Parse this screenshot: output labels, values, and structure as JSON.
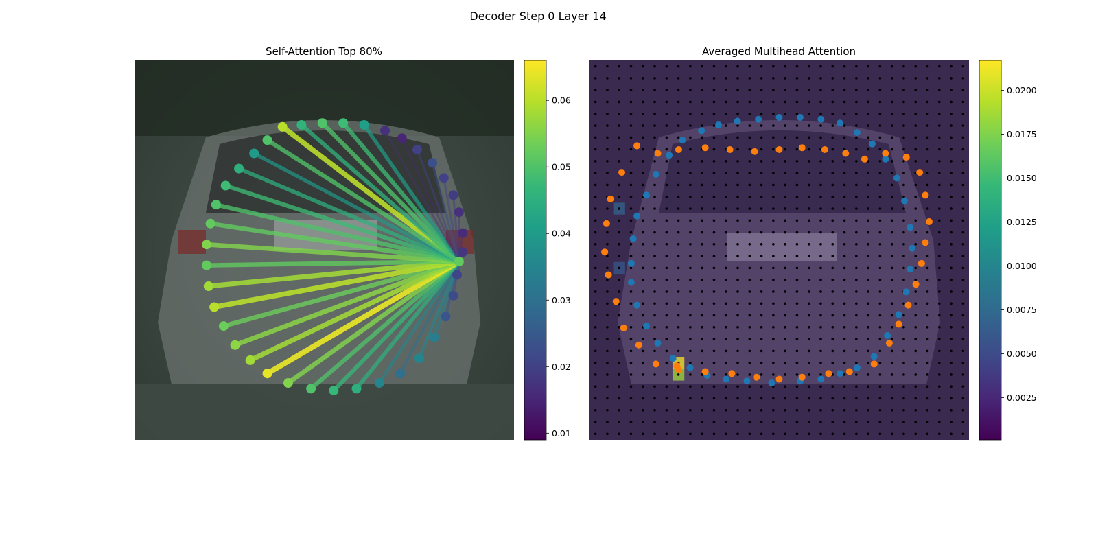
{
  "figure": {
    "suptitle": "Decoder Step 0 Layer 14"
  },
  "colors": {
    "point_blue": "#1f77b4",
    "point_orange": "#ff7f0e",
    "grid_dot": "#000000",
    "viridis": [
      "#440154",
      "#482878",
      "#3e4a89",
      "#31688e",
      "#26828e",
      "#1f9e89",
      "#35b779",
      "#6ece58",
      "#b5de2b",
      "#fde725"
    ]
  },
  "chart_data": [
    {
      "type": "scatter",
      "title": "Self-Attention Top 80%",
      "description_kind": "attention graph over car contour points",
      "query_point_index": 14,
      "points": [
        {
          "x": 0.39,
          "y": 0.825,
          "v": 0.06
        },
        {
          "x": 0.44,
          "y": 0.83,
          "v": 0.046
        },
        {
          "x": 0.495,
          "y": 0.835,
          "v": 0.05
        },
        {
          "x": 0.55,
          "y": 0.835,
          "v": 0.048
        },
        {
          "x": 0.605,
          "y": 0.83,
          "v": 0.041
        },
        {
          "x": 0.66,
          "y": 0.815,
          "v": 0.017
        },
        {
          "x": 0.705,
          "y": 0.795,
          "v": 0.015
        },
        {
          "x": 0.745,
          "y": 0.765,
          "v": 0.02
        },
        {
          "x": 0.785,
          "y": 0.73,
          "v": 0.023
        },
        {
          "x": 0.815,
          "y": 0.69,
          "v": 0.02
        },
        {
          "x": 0.84,
          "y": 0.645,
          "v": 0.019
        },
        {
          "x": 0.855,
          "y": 0.6,
          "v": 0.017
        },
        {
          "x": 0.865,
          "y": 0.545,
          "v": 0.016
        },
        {
          "x": 0.865,
          "y": 0.495,
          "v": 0.018
        },
        {
          "x": 0.855,
          "y": 0.47,
          "v": 0.052
        },
        {
          "x": 0.85,
          "y": 0.435,
          "v": 0.021
        },
        {
          "x": 0.84,
          "y": 0.38,
          "v": 0.022
        },
        {
          "x": 0.82,
          "y": 0.325,
          "v": 0.024
        },
        {
          "x": 0.79,
          "y": 0.27,
          "v": 0.033
        },
        {
          "x": 0.75,
          "y": 0.215,
          "v": 0.035
        },
        {
          "x": 0.7,
          "y": 0.175,
          "v": 0.03
        },
        {
          "x": 0.645,
          "y": 0.15,
          "v": 0.035
        },
        {
          "x": 0.585,
          "y": 0.135,
          "v": 0.045
        },
        {
          "x": 0.525,
          "y": 0.13,
          "v": 0.047
        },
        {
          "x": 0.465,
          "y": 0.135,
          "v": 0.05
        },
        {
          "x": 0.405,
          "y": 0.15,
          "v": 0.055
        },
        {
          "x": 0.35,
          "y": 0.175,
          "v": 0.064
        },
        {
          "x": 0.305,
          "y": 0.21,
          "v": 0.058
        },
        {
          "x": 0.265,
          "y": 0.25,
          "v": 0.056
        },
        {
          "x": 0.235,
          "y": 0.3,
          "v": 0.053
        },
        {
          "x": 0.21,
          "y": 0.35,
          "v": 0.06
        },
        {
          "x": 0.195,
          "y": 0.405,
          "v": 0.058
        },
        {
          "x": 0.19,
          "y": 0.46,
          "v": 0.052
        },
        {
          "x": 0.19,
          "y": 0.515,
          "v": 0.055
        },
        {
          "x": 0.2,
          "y": 0.57,
          "v": 0.052
        },
        {
          "x": 0.215,
          "y": 0.62,
          "v": 0.05
        },
        {
          "x": 0.24,
          "y": 0.67,
          "v": 0.048
        },
        {
          "x": 0.275,
          "y": 0.715,
          "v": 0.045
        },
        {
          "x": 0.315,
          "y": 0.755,
          "v": 0.04
        },
        {
          "x": 0.35,
          "y": 0.79,
          "v": 0.05
        }
      ],
      "colorbar": {
        "min": 0.009,
        "max": 0.066,
        "ticks": [
          "0.01",
          "0.02",
          "0.03",
          "0.04",
          "0.05",
          "0.06"
        ],
        "tick_values": [
          0.01,
          0.02,
          0.03,
          0.04,
          0.05,
          0.06
        ]
      },
      "axes": {
        "x_range": [
          0,
          1
        ],
        "y_range": [
          0,
          1
        ],
        "ticks_visible": false
      }
    },
    {
      "type": "heatmap",
      "title": "Averaged Multihead Attention",
      "grid_size": 32,
      "hot_cells": [
        {
          "col": 7,
          "row": 25,
          "v": 0.0215
        },
        {
          "col": 7,
          "row": 26,
          "v": 0.0185
        },
        {
          "col": 2,
          "row": 12,
          "v": 0.007
        },
        {
          "col": 2,
          "row": 17,
          "v": 0.006
        }
      ],
      "blue_points": [
        {
          "x": 0.445,
          "y": 0.845
        },
        {
          "x": 0.5,
          "y": 0.85
        },
        {
          "x": 0.555,
          "y": 0.85
        },
        {
          "x": 0.39,
          "y": 0.84
        },
        {
          "x": 0.61,
          "y": 0.845
        },
        {
          "x": 0.34,
          "y": 0.83
        },
        {
          "x": 0.66,
          "y": 0.835
        },
        {
          "x": 0.295,
          "y": 0.815
        },
        {
          "x": 0.705,
          "y": 0.81
        },
        {
          "x": 0.245,
          "y": 0.79
        },
        {
          "x": 0.745,
          "y": 0.78
        },
        {
          "x": 0.21,
          "y": 0.75
        },
        {
          "x": 0.78,
          "y": 0.74
        },
        {
          "x": 0.175,
          "y": 0.7
        },
        {
          "x": 0.81,
          "y": 0.69
        },
        {
          "x": 0.15,
          "y": 0.645
        },
        {
          "x": 0.83,
          "y": 0.63
        },
        {
          "x": 0.125,
          "y": 0.59
        },
        {
          "x": 0.845,
          "y": 0.56
        },
        {
          "x": 0.115,
          "y": 0.53
        },
        {
          "x": 0.85,
          "y": 0.505
        },
        {
          "x": 0.11,
          "y": 0.465
        },
        {
          "x": 0.845,
          "y": 0.45
        },
        {
          "x": 0.11,
          "y": 0.415
        },
        {
          "x": 0.835,
          "y": 0.39
        },
        {
          "x": 0.125,
          "y": 0.355
        },
        {
          "x": 0.815,
          "y": 0.33
        },
        {
          "x": 0.15,
          "y": 0.3
        },
        {
          "x": 0.785,
          "y": 0.275
        },
        {
          "x": 0.18,
          "y": 0.255
        },
        {
          "x": 0.75,
          "y": 0.22
        },
        {
          "x": 0.22,
          "y": 0.215
        },
        {
          "x": 0.705,
          "y": 0.19
        },
        {
          "x": 0.265,
          "y": 0.19
        },
        {
          "x": 0.66,
          "y": 0.175
        },
        {
          "x": 0.31,
          "y": 0.17
        },
        {
          "x": 0.61,
          "y": 0.16
        },
        {
          "x": 0.36,
          "y": 0.16
        },
        {
          "x": 0.555,
          "y": 0.155
        },
        {
          "x": 0.415,
          "y": 0.155
        },
        {
          "x": 0.48,
          "y": 0.15
        }
      ],
      "orange_points": [
        {
          "x": 0.125,
          "y": 0.775
        },
        {
          "x": 0.18,
          "y": 0.755
        },
        {
          "x": 0.235,
          "y": 0.765
        },
        {
          "x": 0.305,
          "y": 0.77
        },
        {
          "x": 0.37,
          "y": 0.765
        },
        {
          "x": 0.435,
          "y": 0.76
        },
        {
          "x": 0.5,
          "y": 0.765
        },
        {
          "x": 0.56,
          "y": 0.77
        },
        {
          "x": 0.62,
          "y": 0.765
        },
        {
          "x": 0.675,
          "y": 0.755
        },
        {
          "x": 0.725,
          "y": 0.74
        },
        {
          "x": 0.78,
          "y": 0.755
        },
        {
          "x": 0.835,
          "y": 0.745
        },
        {
          "x": 0.87,
          "y": 0.705
        },
        {
          "x": 0.885,
          "y": 0.645
        },
        {
          "x": 0.895,
          "y": 0.575
        },
        {
          "x": 0.885,
          "y": 0.52
        },
        {
          "x": 0.875,
          "y": 0.465
        },
        {
          "x": 0.86,
          "y": 0.41
        },
        {
          "x": 0.84,
          "y": 0.355
        },
        {
          "x": 0.815,
          "y": 0.305
        },
        {
          "x": 0.79,
          "y": 0.255
        },
        {
          "x": 0.75,
          "y": 0.2
        },
        {
          "x": 0.685,
          "y": 0.18
        },
        {
          "x": 0.63,
          "y": 0.175
        },
        {
          "x": 0.56,
          "y": 0.165
        },
        {
          "x": 0.5,
          "y": 0.16
        },
        {
          "x": 0.44,
          "y": 0.165
        },
        {
          "x": 0.375,
          "y": 0.175
        },
        {
          "x": 0.305,
          "y": 0.18
        },
        {
          "x": 0.235,
          "y": 0.185
        },
        {
          "x": 0.175,
          "y": 0.2
        },
        {
          "x": 0.13,
          "y": 0.25
        },
        {
          "x": 0.09,
          "y": 0.295
        },
        {
          "x": 0.07,
          "y": 0.365
        },
        {
          "x": 0.05,
          "y": 0.435
        },
        {
          "x": 0.04,
          "y": 0.495
        },
        {
          "x": 0.045,
          "y": 0.57
        },
        {
          "x": 0.055,
          "y": 0.635
        },
        {
          "x": 0.085,
          "y": 0.705
        },
        {
          "x": 0.23,
          "y": 0.195
        }
      ],
      "colorbar": {
        "min": 0.0001,
        "max": 0.0217,
        "ticks": [
          "0.0025",
          "0.0050",
          "0.0075",
          "0.0100",
          "0.0125",
          "0.0150",
          "0.0175",
          "0.0200"
        ],
        "tick_values": [
          0.0025,
          0.005,
          0.0075,
          0.01,
          0.0125,
          0.015,
          0.0175,
          0.02
        ]
      },
      "axes": {
        "x_range": [
          0,
          1
        ],
        "y_range": [
          0,
          1
        ],
        "ticks_visible": false
      }
    }
  ]
}
